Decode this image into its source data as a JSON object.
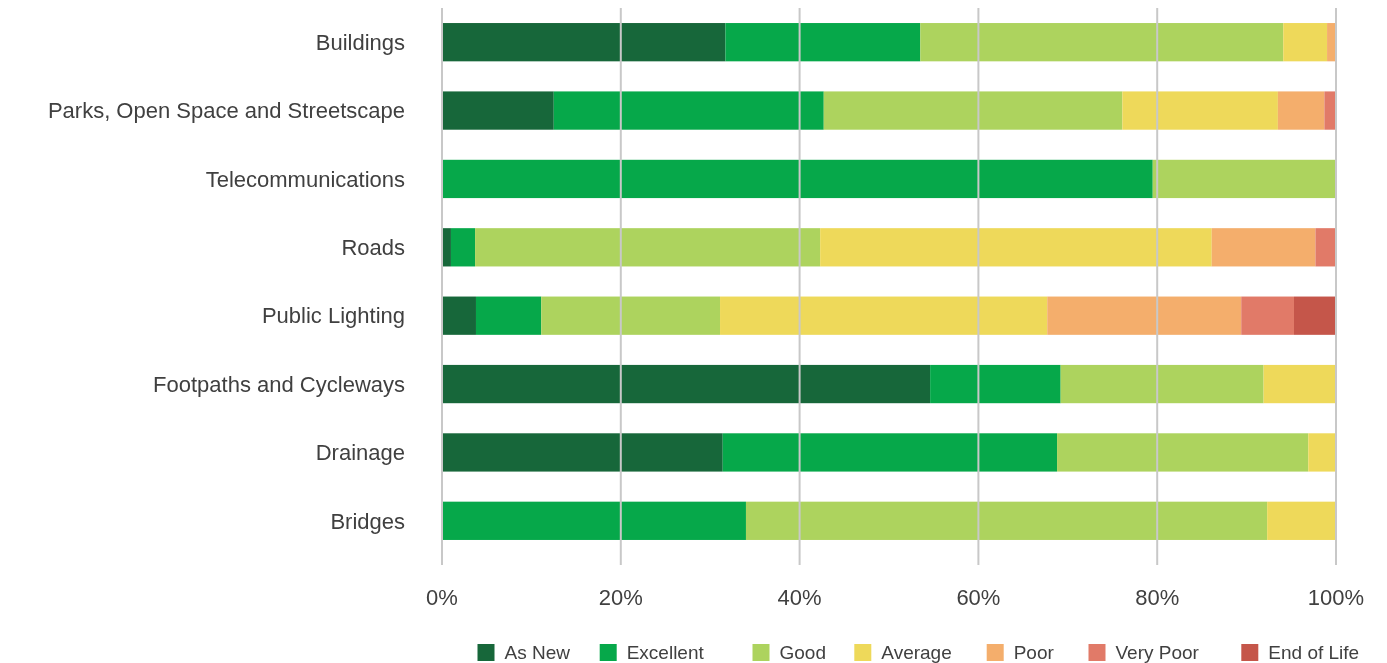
{
  "chart_data": {
    "type": "bar",
    "orientation": "horizontal",
    "stacked": true,
    "categories": [
      "Buildings",
      "Parks, Open Space and Streetscape",
      "Telecommunications",
      "Roads",
      "Public Lighting",
      "Footpaths and Cycleways",
      "Drainage",
      "Bridges"
    ],
    "series": [
      {
        "name": "As New",
        "color": "#17673a",
        "values": [
          31.7,
          12.5,
          0,
          1.0,
          3.8,
          54.6,
          31.4,
          0
        ]
      },
      {
        "name": "Excellent",
        "color": "#06a84a",
        "values": [
          21.8,
          30.2,
          79.5,
          2.7,
          7.3,
          14.6,
          37.4,
          34.0
        ]
      },
      {
        "name": "Good",
        "color": "#add35e",
        "values": [
          40.6,
          33.4,
          20.5,
          38.6,
          20.0,
          22.7,
          28.1,
          58.3
        ]
      },
      {
        "name": "Average",
        "color": "#eed95a",
        "values": [
          4.9,
          17.4,
          0,
          43.8,
          36.6,
          8.1,
          3.1,
          7.7
        ]
      },
      {
        "name": "Poor",
        "color": "#f4ae6c",
        "values": [
          1.0,
          5.2,
          0,
          11.6,
          21.7,
          0,
          0,
          0
        ]
      },
      {
        "name": "Very Poor",
        "color": "#e17a68",
        "values": [
          0,
          1.3,
          0,
          2.3,
          5.9,
          0,
          0,
          0
        ]
      },
      {
        "name": "End of Life",
        "color": "#c5564a",
        "values": [
          0,
          0,
          0,
          0,
          4.7,
          0,
          0,
          0
        ]
      }
    ],
    "xlim": [
      0,
      100
    ],
    "xticks": [
      {
        "value": 0,
        "label": "0%"
      },
      {
        "value": 20,
        "label": "20%"
      },
      {
        "value": 40,
        "label": "40%"
      },
      {
        "value": 60,
        "label": "60%"
      },
      {
        "value": 80,
        "label": "80%"
      },
      {
        "value": 100,
        "label": "100%"
      }
    ],
    "grid": "x",
    "legend": "bottom"
  }
}
